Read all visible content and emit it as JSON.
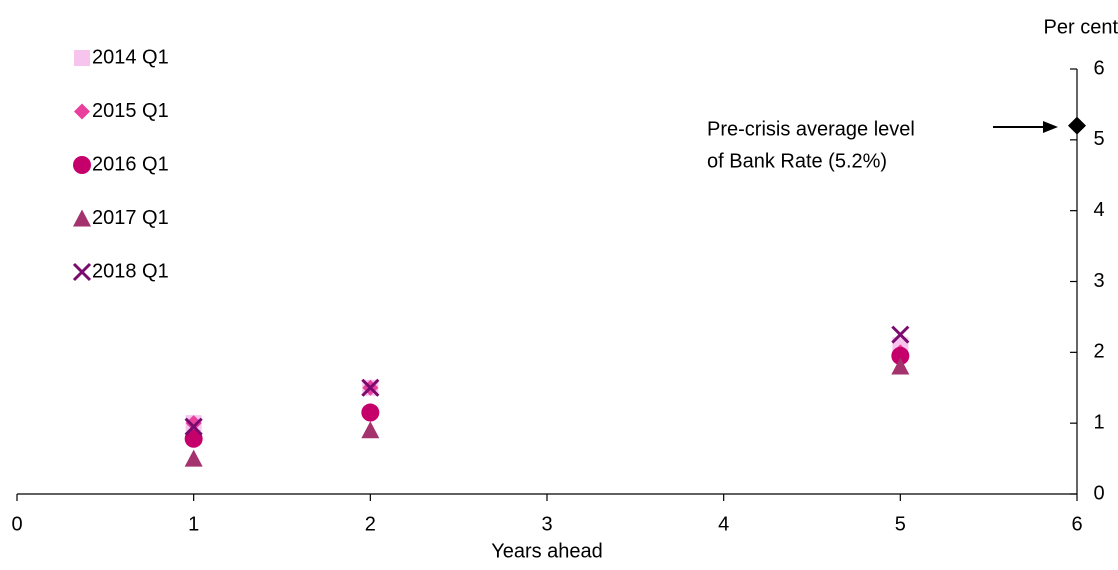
{
  "chart_data": {
    "type": "scatter",
    "x_label": "Years ahead",
    "y_label": "Per cent",
    "xlim": [
      0,
      6
    ],
    "xticks": [
      0,
      1,
      2,
      3,
      4,
      5,
      6
    ],
    "ylim": [
      0,
      6
    ],
    "yticks": [
      0,
      1,
      2,
      3,
      4,
      5,
      6
    ],
    "series": [
      {
        "name": "2014 Q1",
        "color": "#f7c4ee",
        "marker": "square",
        "x": [
          1,
          2,
          5
        ],
        "values": [
          1.0,
          1.5,
          2.1
        ]
      },
      {
        "name": "2015 Q1",
        "color": "#e8409c",
        "marker": "diamond",
        "x": [
          1,
          2,
          5
        ],
        "values": [
          1.0,
          1.5,
          2.0
        ]
      },
      {
        "name": "2016 Q1",
        "color": "#c6006b",
        "marker": "circle",
        "x": [
          1,
          2,
          5
        ],
        "values": [
          0.78,
          1.15,
          1.95
        ]
      },
      {
        "name": "2017 Q1",
        "color": "#a3326d",
        "marker": "triangle",
        "x": [
          1,
          2,
          5
        ],
        "values": [
          0.5,
          0.9,
          1.8
        ]
      },
      {
        "name": "2018 Q1",
        "color": "#7a0a6e",
        "marker": "cross",
        "x": [
          1,
          2,
          5
        ],
        "values": [
          0.95,
          1.5,
          2.25
        ]
      }
    ],
    "annotation": {
      "lines": [
        "Pre-crisis average level",
        "of Bank Rate (5.2%)"
      ],
      "x": 6,
      "y": 5.2,
      "color": "#000000",
      "marker": "diamond"
    }
  }
}
